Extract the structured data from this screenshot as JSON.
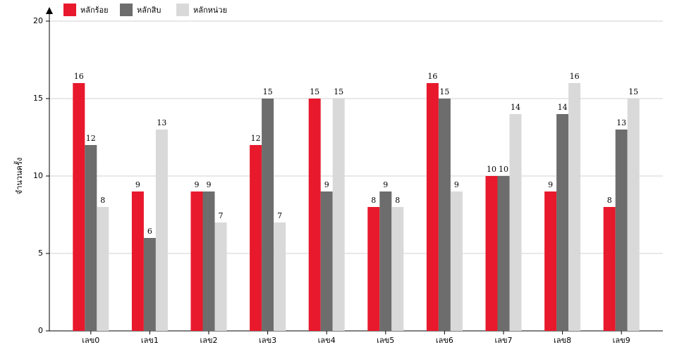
{
  "chart_data": {
    "type": "bar",
    "y_label": "จำนวนครั้ง",
    "categories": [
      "เลข0",
      "เลข1",
      "เลข2",
      "เลข3",
      "เลข4",
      "เลข5",
      "เลข6",
      "เลข7",
      "เลข8",
      "เลข9"
    ],
    "series": [
      {
        "name": "หลักร้อย",
        "color": "#e8192c",
        "values": [
          16,
          9,
          9,
          12,
          15,
          8,
          16,
          10,
          9,
          8
        ]
      },
      {
        "name": "หลักสิบ",
        "color": "#6d6d6d",
        "values": [
          12,
          6,
          9,
          15,
          9,
          9,
          15,
          10,
          14,
          13
        ]
      },
      {
        "name": "หลักหน่วย",
        "color": "#d9d9d9",
        "values": [
          8,
          13,
          7,
          7,
          15,
          8,
          9,
          14,
          16,
          15
        ]
      }
    ],
    "ylim": [
      0,
      20
    ],
    "yticks": [
      0,
      5,
      10,
      15,
      20
    ],
    "grid": true
  }
}
